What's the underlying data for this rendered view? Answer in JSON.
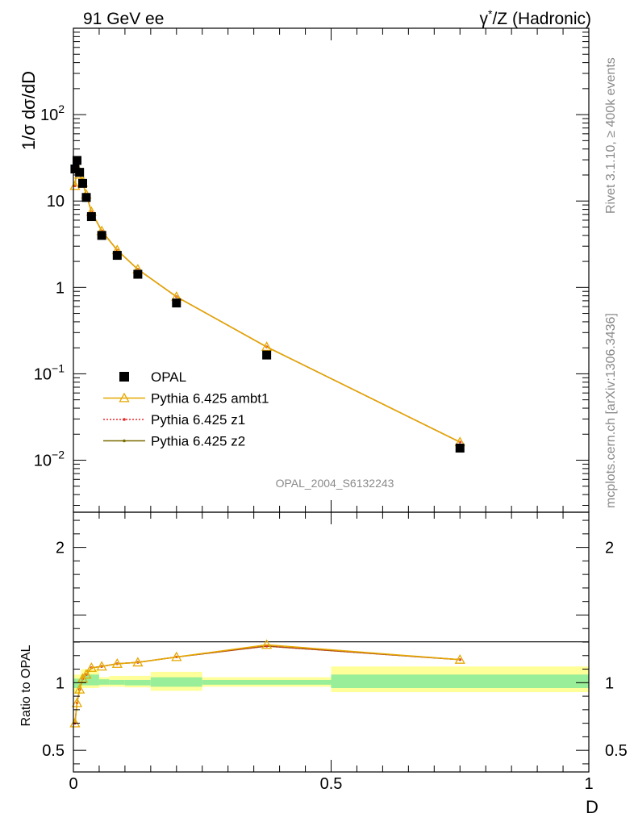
{
  "header": {
    "left": "91 GeV ee",
    "right_base": "γ",
    "right_sup": "*",
    "right_rest": "/Z (Hadronic)"
  },
  "side_texts": {
    "rivet": "Rivet 3.1.10, ≥ 400k events",
    "mcplots": "mcplots.cern.ch [arXiv:1306.3436]"
  },
  "analysis_label": "OPAL_2004_S6132243",
  "colors": {
    "data": "#000000",
    "ambt1": "#e6a800",
    "z1": "#e8282a",
    "z2": "#7a6a00",
    "band_outer": "#ffff99",
    "band_inner": "#99ee99"
  },
  "chart_data": [
    {
      "type": "scatter",
      "scale_y": "log",
      "ylabel": "1/σ dσ/dD",
      "xlim": [
        0,
        1
      ],
      "ylim": [
        0.0025,
        1000
      ],
      "y_ticks": [
        {
          "value": 100,
          "base": "10",
          "exp": "2"
        },
        {
          "value": 10,
          "base": "10",
          "exp": ""
        },
        {
          "value": 1,
          "base": "1",
          "exp": ""
        },
        {
          "value": 0.1,
          "base": "10",
          "exp": "−1"
        },
        {
          "value": 0.01,
          "base": "10",
          "exp": "−2"
        }
      ],
      "legend": {
        "placement": "lower-left",
        "entries": [
          "OPAL",
          "Pythia 6.425 ambt1",
          "Pythia 6.425 z1",
          "Pythia 6.425 z2"
        ]
      },
      "series": [
        {
          "name": "OPAL",
          "x": [
            0.003,
            0.007,
            0.012,
            0.018,
            0.025,
            0.035,
            0.055,
            0.085,
            0.125,
            0.2,
            0.375,
            0.75
          ],
          "y": [
            23.5,
            29.5,
            21.5,
            16.0,
            11.0,
            6.6,
            4.0,
            2.35,
            1.42,
            0.66,
            0.165,
            0.0138
          ]
        },
        {
          "name": "Pythia 6.425 ambt1",
          "x": [
            0.003,
            0.007,
            0.012,
            0.018,
            0.025,
            0.035,
            0.055,
            0.085,
            0.125,
            0.2,
            0.375,
            0.75
          ],
          "y": [
            15.0,
            24.5,
            20.3,
            16.3,
            11.9,
            7.5,
            4.5,
            2.7,
            1.62,
            0.78,
            0.205,
            0.0162
          ]
        },
        {
          "name": "Pythia 6.425 z1",
          "x": [
            0.003,
            0.007,
            0.012,
            0.018,
            0.025,
            0.035,
            0.055,
            0.085,
            0.125,
            0.2,
            0.375,
            0.75
          ],
          "y": [
            15.0,
            24.5,
            20.3,
            16.3,
            11.9,
            7.5,
            4.5,
            2.7,
            1.62,
            0.78,
            0.205,
            0.0162
          ]
        },
        {
          "name": "Pythia 6.425 z2",
          "x": [
            0.003,
            0.007,
            0.012,
            0.018,
            0.025,
            0.035,
            0.055,
            0.085,
            0.125,
            0.2,
            0.375,
            0.75
          ],
          "y": [
            15.0,
            24.5,
            20.3,
            16.3,
            11.9,
            7.5,
            4.5,
            2.7,
            1.62,
            0.78,
            0.205,
            0.0162
          ]
        }
      ]
    },
    {
      "type": "line",
      "ylabel": "Ratio to OPAL",
      "xlabel": "D",
      "xlim": [
        0,
        1
      ],
      "ylim": [
        0.34,
        2.26
      ],
      "x_ticks": [
        "0",
        "0.5",
        "1"
      ],
      "y_ticks": [
        "0.5",
        "1",
        "2"
      ],
      "error_bands": [
        {
          "x0": 0.0,
          "x1": 0.015,
          "outer": [
            0.92,
            1.06
          ],
          "inner": [
            0.96,
            1.03
          ]
        },
        {
          "x0": 0.015,
          "x1": 0.05,
          "outer": [
            0.96,
            1.1
          ],
          "inner": [
            0.98,
            1.06
          ]
        },
        {
          "x0": 0.05,
          "x1": 0.07,
          "outer": [
            0.97,
            1.04
          ],
          "inner": [
            0.985,
            1.025
          ]
        },
        {
          "x0": 0.07,
          "x1": 0.1,
          "outer": [
            0.97,
            1.05
          ],
          "inner": [
            0.985,
            1.02
          ]
        },
        {
          "x0": 0.1,
          "x1": 0.15,
          "outer": [
            0.965,
            1.05
          ],
          "inner": [
            0.98,
            1.02
          ]
        },
        {
          "x0": 0.15,
          "x1": 0.25,
          "outer": [
            0.94,
            1.08
          ],
          "inner": [
            0.97,
            1.04
          ]
        },
        {
          "x0": 0.25,
          "x1": 0.5,
          "outer": [
            0.97,
            1.04
          ],
          "inner": [
            0.985,
            1.02
          ]
        },
        {
          "x0": 0.5,
          "x1": 1.0,
          "outer": [
            0.93,
            1.12
          ],
          "inner": [
            0.96,
            1.06
          ]
        }
      ],
      "series": [
        {
          "name": "Pythia 6.425 ambt1",
          "x": [
            0.003,
            0.007,
            0.012,
            0.018,
            0.025,
            0.035,
            0.055,
            0.085,
            0.125,
            0.2,
            0.375,
            0.75
          ],
          "y": [
            0.7,
            0.85,
            0.95,
            1.03,
            1.06,
            1.11,
            1.12,
            1.14,
            1.15,
            1.19,
            1.28,
            1.17
          ]
        },
        {
          "name": "Pythia 6.425 z1",
          "x": [
            0.003,
            0.007,
            0.012,
            0.018,
            0.025,
            0.035,
            0.055,
            0.085,
            0.125,
            0.2,
            0.375,
            0.75
          ],
          "y": [
            0.7,
            0.85,
            0.95,
            1.03,
            1.06,
            1.11,
            1.12,
            1.14,
            1.15,
            1.19,
            1.27,
            1.17
          ]
        },
        {
          "name": "Pythia 6.425 z2",
          "x": [
            0.003,
            0.007,
            0.012,
            0.018,
            0.025,
            0.035,
            0.055,
            0.085,
            0.125,
            0.2,
            0.375,
            0.75
          ],
          "y": [
            0.7,
            0.85,
            0.95,
            1.03,
            1.06,
            1.11,
            1.12,
            1.14,
            1.15,
            1.19,
            1.27,
            1.17
          ]
        }
      ]
    }
  ]
}
